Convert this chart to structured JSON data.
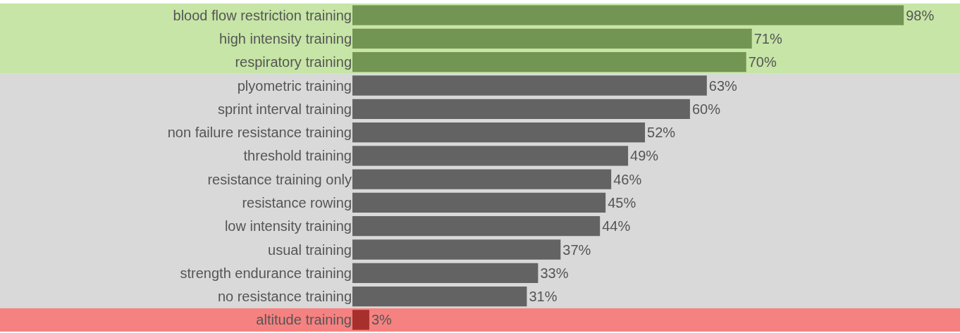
{
  "chart_data": {
    "type": "bar",
    "orientation": "horizontal",
    "categories": [
      "blood flow restriction training",
      "high intensity training",
      "respiratory training",
      "plyometric training",
      "sprint interval training",
      "non failure resistance training",
      "threshold training",
      "resistance training only",
      "resistance rowing",
      "low intensity training",
      "usual training",
      "strength endurance training",
      "no resistance training",
      "altitude training"
    ],
    "values": [
      98,
      71,
      70,
      63,
      60,
      52,
      49,
      46,
      45,
      44,
      37,
      33,
      31,
      3
    ],
    "colors": [
      "#739553",
      "#739553",
      "#739553",
      "#636363",
      "#636363",
      "#636363",
      "#636363",
      "#636363",
      "#636363",
      "#636363",
      "#636363",
      "#636363",
      "#636363",
      "#a7302c"
    ],
    "value_labels": [
      "98%",
      "71%",
      "70%",
      "63%",
      "60%",
      "52%",
      "49%",
      "46%",
      "45%",
      "44%",
      "37%",
      "33%",
      "31%",
      "3%"
    ],
    "xlim": [
      0,
      108
    ],
    "bands": [
      {
        "axis": "y",
        "from": "blood flow restriction training",
        "to": "respiratory training",
        "color": "#c6e5a6"
      },
      {
        "axis": "y",
        "from": "plyometric training",
        "to": "no resistance training",
        "color": "#d9d9d9"
      },
      {
        "axis": "y",
        "from": "altitude training",
        "to": "altitude training",
        "color": "#f58281"
      }
    ],
    "grid": false,
    "legend": false
  }
}
